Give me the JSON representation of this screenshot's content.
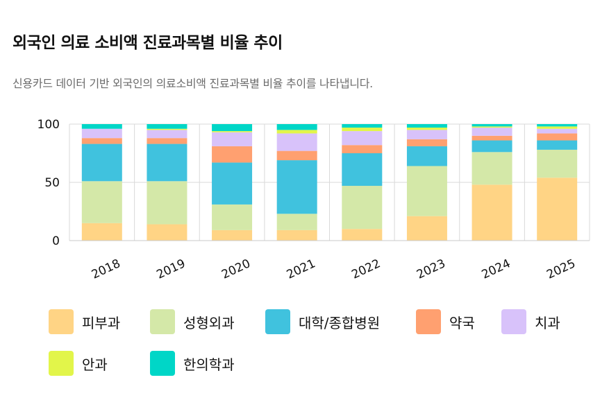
{
  "title": "외국인 의료 소비액 진료과목별 비율 추이",
  "subtitle": "신용카드 데이터 기반 외국인의 의료소비액 진료과목별 비율 추이를 나타냅니다.",
  "chart_data": {
    "type": "bar",
    "stacked": true,
    "categories": [
      "2018",
      "2019",
      "2020",
      "2021",
      "2022",
      "2023",
      "2024",
      "2025"
    ],
    "ylim": [
      0,
      100
    ],
    "yticks": [
      0,
      50,
      100
    ],
    "grid": true,
    "legend_position": "bottom",
    "series": [
      {
        "name": "피부과",
        "color": "#FFD485",
        "values": [
          15,
          14,
          9,
          9,
          10,
          21,
          48,
          54
        ]
      },
      {
        "name": "성형외과",
        "color": "#D4E8A8",
        "values": [
          36,
          37,
          22,
          14,
          37,
          43,
          28,
          24
        ]
      },
      {
        "name": "대학/종합병원",
        "color": "#40C2DE",
        "values": [
          32,
          32,
          36,
          46,
          28,
          17,
          10,
          8
        ]
      },
      {
        "name": "약국",
        "color": "#FFA070",
        "values": [
          5,
          5,
          14,
          8,
          7,
          6,
          4,
          6
        ]
      },
      {
        "name": "치과",
        "color": "#D8C2FA",
        "values": [
          8,
          7,
          12,
          15,
          12,
          8,
          7,
          4
        ]
      },
      {
        "name": "안과",
        "color": "#E2F54A",
        "values": [
          0,
          1,
          1,
          3,
          3,
          2,
          1,
          2
        ]
      },
      {
        "name": "한의학과",
        "color": "#00D6C7",
        "values": [
          4,
          4,
          6,
          5,
          3,
          3,
          2,
          2
        ]
      }
    ]
  }
}
